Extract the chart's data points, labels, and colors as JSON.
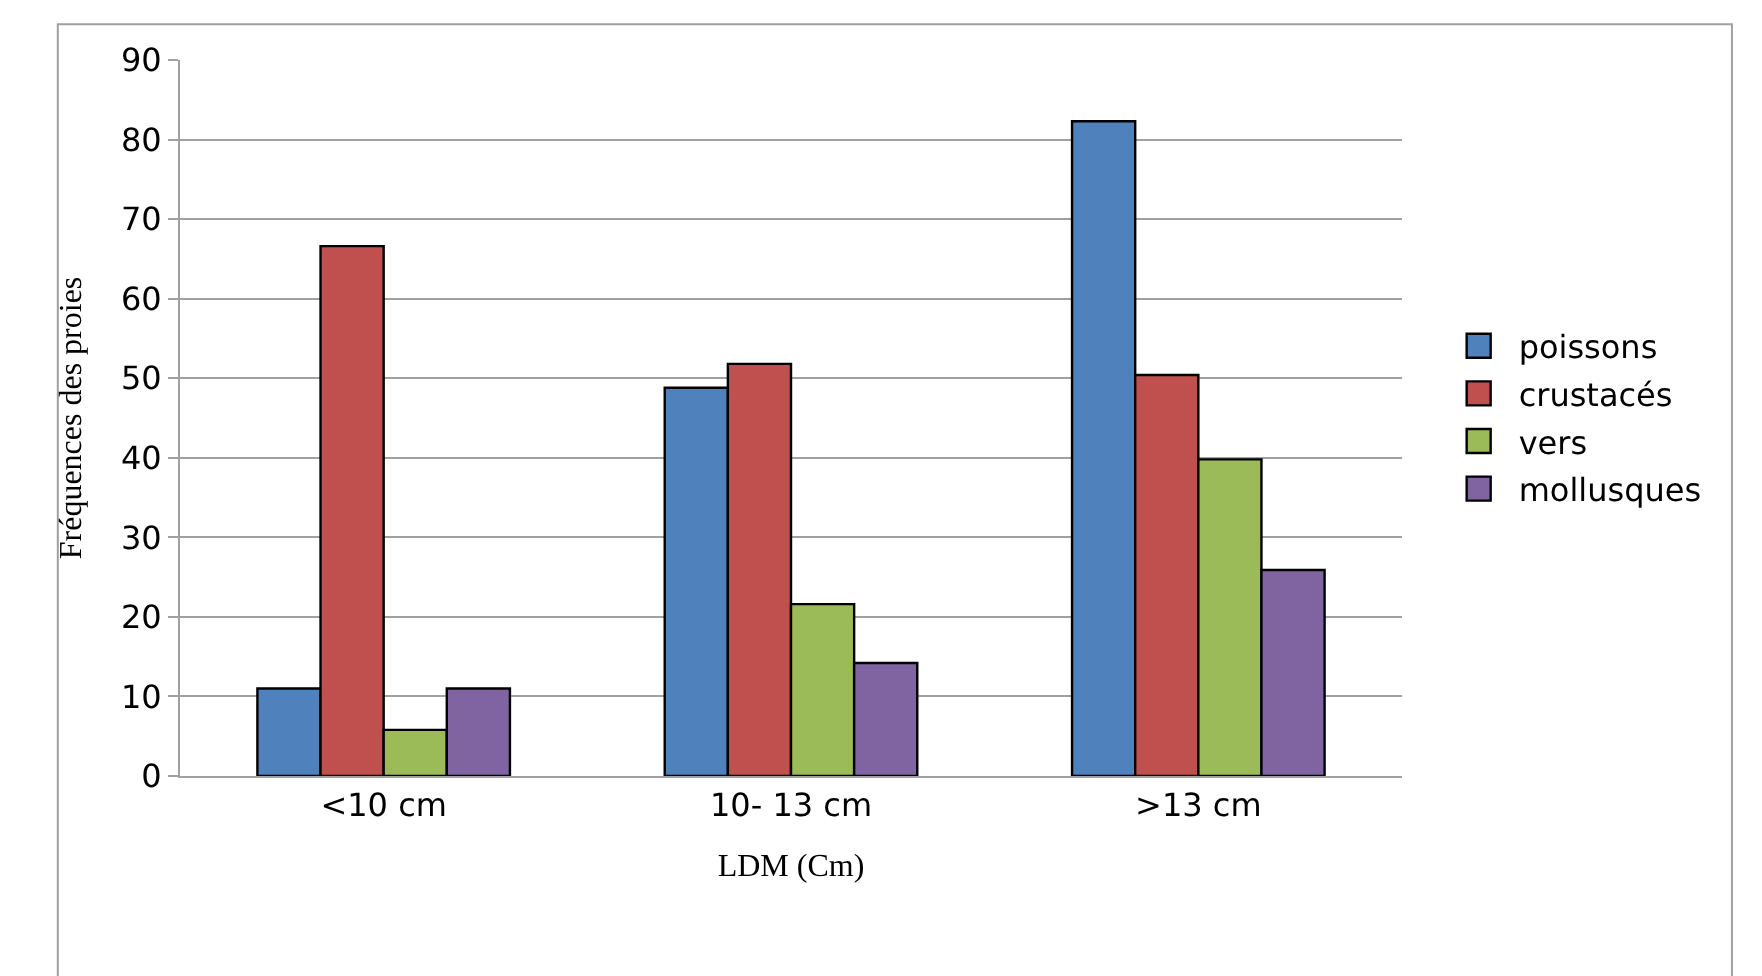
{
  "chart_data": {
    "type": "bar",
    "xlabel": "LDM (Cm)",
    "ylabel": "Fréquences des proies",
    "categories": [
      "<10 cm",
      "10- 13 cm",
      ">13 cm"
    ],
    "series": [
      {
        "name": "poissons",
        "color": "#4f81bd",
        "values": [
          11,
          48.8,
          82.3
        ]
      },
      {
        "name": "crustacés",
        "color": "#c0504d",
        "values": [
          66.6,
          51.8,
          50.4
        ]
      },
      {
        "name": "vers",
        "color": "#9bbb59",
        "values": [
          5.8,
          21.6,
          39.8
        ]
      },
      {
        "name": "mollusques",
        "color": "#8064a2",
        "values": [
          11,
          14.2,
          25.9
        ]
      }
    ],
    "ylim": [
      0,
      90
    ],
    "yticks": [
      0,
      10,
      20,
      30,
      40,
      50,
      60,
      70,
      80,
      90
    ],
    "grid": "y",
    "legend": "right"
  }
}
